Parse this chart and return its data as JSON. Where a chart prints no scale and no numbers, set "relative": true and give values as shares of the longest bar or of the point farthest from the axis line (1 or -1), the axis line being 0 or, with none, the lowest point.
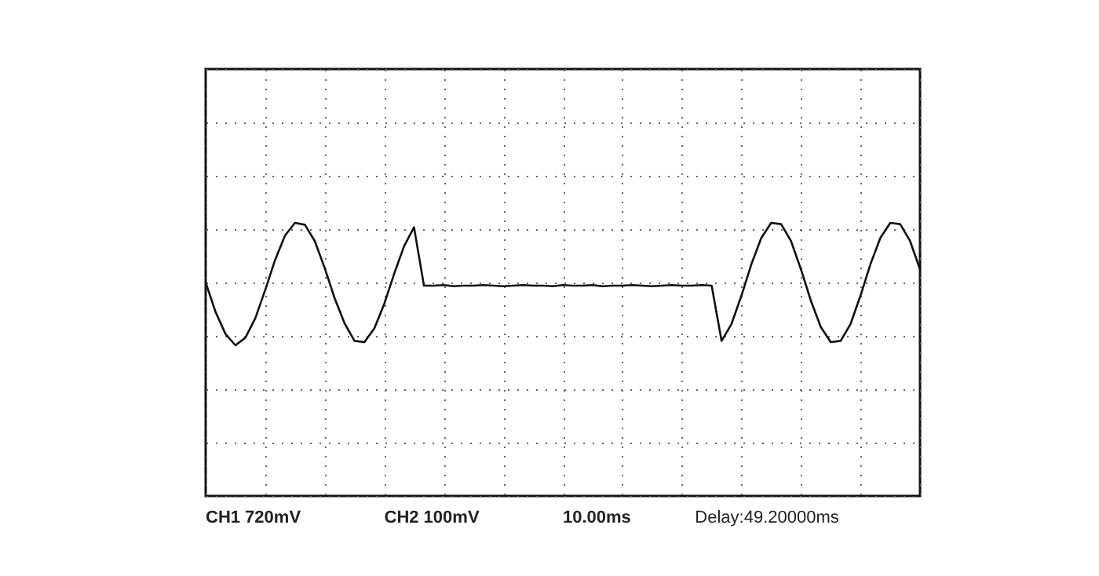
{
  "chart_data": {
    "type": "line",
    "relative": true,
    "grid": true,
    "marker": "none",
    "line_style": "solid",
    "color": "#111111",
    "categories": [
      null,
      null,
      null,
      null,
      null,
      null,
      null,
      null,
      null,
      null,
      null,
      null,
      null,
      null,
      null,
      null,
      null,
      null,
      null,
      null,
      null,
      null,
      null,
      null,
      null,
      null,
      null,
      null,
      null,
      null,
      null,
      null,
      null,
      null,
      null,
      null,
      null,
      null,
      null,
      null,
      null,
      null,
      null,
      null,
      null,
      null,
      null,
      null,
      null,
      null,
      null,
      null,
      null,
      null,
      null,
      null,
      null,
      null,
      null,
      null,
      null,
      null,
      null,
      null,
      null,
      null,
      null,
      null,
      null,
      null,
      null,
      null,
      null
    ],
    "values": [
      0,
      -0.47,
      -0.82,
      -1,
      -0.88,
      -0.57,
      -0.12,
      0.36,
      0.75,
      0.95,
      0.92,
      0.66,
      0.23,
      -0.25,
      -0.65,
      -0.93,
      -0.95,
      -0.73,
      -0.34,
      0.14,
      0.58,
      0.88,
      -0.05,
      -0.05,
      -0.04,
      -0.06,
      -0.05,
      -0.05,
      -0.04,
      -0.05,
      -0.06,
      -0.05,
      -0.04,
      -0.05,
      -0.05,
      -0.06,
      -0.04,
      -0.05,
      -0.05,
      -0.04,
      -0.06,
      -0.05,
      -0.05,
      -0.04,
      -0.05,
      -0.06,
      -0.05,
      -0.04,
      -0.05,
      -0.05,
      -0.04,
      -0.05,
      -0.93,
      -0.66,
      -0.21,
      0.29,
      0.71,
      0.95,
      0.93,
      0.66,
      0.21,
      -0.29,
      -0.71,
      -0.95,
      -0.93,
      -0.66,
      -0.21,
      0.29,
      0.71,
      0.95,
      0.93,
      0.66,
      0.21
    ],
    "annotations": [
      "CH1  720mV",
      "CH2  100mV",
      "10.00ms",
      "Delay:49.20000ms"
    ]
  }
}
